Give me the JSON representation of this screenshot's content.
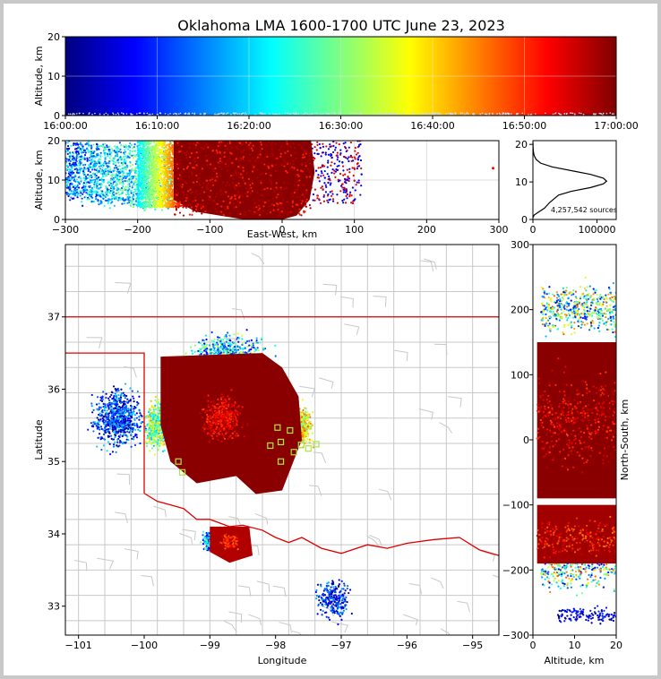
{
  "title": "Oklahoma LMA 1600-1700 UTC June 23, 2023",
  "colors": {
    "frame": "#c8c8c8",
    "state_line": "#e00000",
    "county_line": "#c8c8c8",
    "station": "#a8e83c"
  },
  "chart_data": [
    {
      "type": "heatmap",
      "name": "time-colorbar",
      "ylabel": "Altitude, km",
      "ylim": [
        0,
        20
      ],
      "yticks": [
        "0",
        "10",
        "20"
      ],
      "xticks": [
        "16:00:00",
        "16:10:00",
        "16:20:00",
        "16:30:00",
        "16:40:00",
        "16:50:00",
        "17:00:00"
      ],
      "colormap": "jet",
      "grid": true
    },
    {
      "type": "scatter",
      "name": "east-west-altitude",
      "xlabel": "East-West, km",
      "ylabel": "Altitude, km",
      "xlim": [
        -300,
        300
      ],
      "ylim": [
        0,
        20
      ],
      "xticks": [
        "−300",
        "−200",
        "−100",
        "0",
        "100",
        "200",
        "300"
      ],
      "yticks": [
        "0",
        "10",
        "20"
      ],
      "core_extent_km": [
        -150,
        40
      ],
      "grid": true
    },
    {
      "type": "line",
      "name": "altitude-histogram",
      "xlim": [
        0,
        130000
      ],
      "ylim": [
        0,
        21
      ],
      "xticks": [
        "0",
        "100000"
      ],
      "yticks": [
        "0",
        "10",
        "20"
      ],
      "profile": [
        [
          0,
          0.5
        ],
        [
          2000,
          1.2
        ],
        [
          9000,
          2.0
        ],
        [
          18000,
          3.0
        ],
        [
          26000,
          4.5
        ],
        [
          33000,
          5.5
        ],
        [
          40000,
          6.5
        ],
        [
          60000,
          7.5
        ],
        [
          90000,
          8.5
        ],
        [
          110000,
          9.5
        ],
        [
          115000,
          10.2
        ],
        [
          110000,
          11.0
        ],
        [
          90000,
          12.0
        ],
        [
          60000,
          13.0
        ],
        [
          30000,
          14.0
        ],
        [
          12000,
          15.0
        ],
        [
          5000,
          16.0
        ],
        [
          2000,
          17.0
        ],
        [
          800,
          18.0
        ],
        [
          300,
          19.0
        ],
        [
          100,
          20.5
        ]
      ],
      "annotation": "4,257,542 sources"
    },
    {
      "type": "scatter",
      "name": "plan-view-map",
      "xlabel": "Longitude",
      "ylabel": "Latitude",
      "xlim": [
        -101.2,
        -94.6
      ],
      "ylim": [
        32.6,
        38.0
      ],
      "xticks": [
        "−101",
        "−100",
        "−99",
        "−98",
        "−97",
        "−96",
        "−95"
      ],
      "yticks": [
        "33",
        "34",
        "35",
        "36",
        "37"
      ],
      "stations": [
        [
          -97.97,
          35.47
        ],
        [
          -97.78,
          35.43
        ],
        [
          -98.08,
          35.22
        ],
        [
          -97.92,
          35.27
        ],
        [
          -97.72,
          35.13
        ],
        [
          -97.61,
          35.23
        ],
        [
          -97.92,
          35.0
        ],
        [
          -97.5,
          35.18
        ],
        [
          -97.38,
          35.24
        ],
        [
          -99.42,
          34.85
        ],
        [
          -99.48,
          35.0
        ]
      ]
    },
    {
      "type": "scatter",
      "name": "north-south-altitude",
      "xlabel": "Altitude, km",
      "ylabel": "North-South, km",
      "xlim": [
        0,
        20
      ],
      "ylim": [
        -300,
        300
      ],
      "xticks": [
        "0",
        "10",
        "20"
      ],
      "yticks": [
        "−300",
        "−200",
        "−100",
        "0",
        "100",
        "200",
        "300"
      ]
    }
  ]
}
